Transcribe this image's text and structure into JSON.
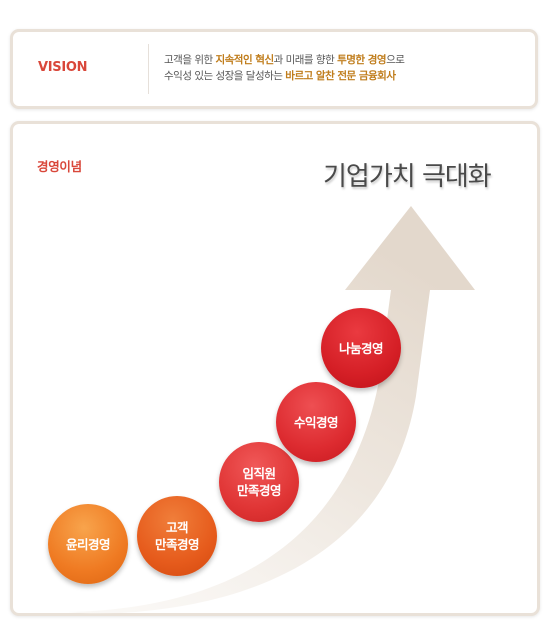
{
  "vision": {
    "label": "VISION",
    "line1_a": "고객을 위한 ",
    "line1_b": "지속적인 혁신",
    "line1_c": "과 미래를 향한 ",
    "line1_d": "투명한 경영",
    "line1_e": "으로",
    "line2_a": "수익성 있는 성장을 달성하는 ",
    "line2_b": "바르고 알찬 전문 금융회사"
  },
  "philosophy": {
    "title": "경영이념",
    "headline": "기업가치 극대화",
    "steps": [
      {
        "label": "윤리경영"
      },
      {
        "label": "고객\n만족경영"
      },
      {
        "label": "임직원\n만족경영"
      },
      {
        "label": "수익경영"
      },
      {
        "label": "나눔경영"
      }
    ]
  },
  "colors": {
    "accent_red": "#d9473a",
    "highlight_gold": "#c07d1c",
    "border": "#e9e1d8"
  }
}
